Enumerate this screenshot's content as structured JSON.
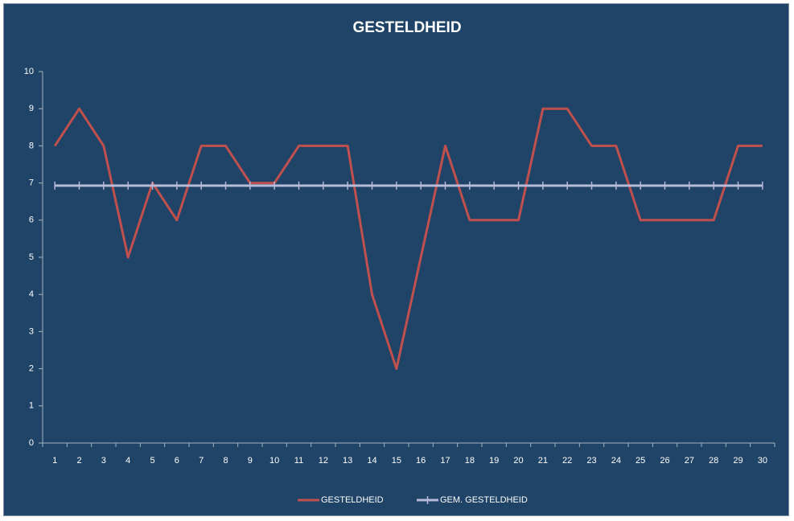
{
  "chart_data": {
    "type": "line",
    "title": "GESTELDHEID",
    "categories": [
      1,
      2,
      3,
      4,
      5,
      6,
      7,
      8,
      9,
      10,
      11,
      12,
      13,
      14,
      15,
      16,
      17,
      18,
      19,
      20,
      21,
      22,
      23,
      24,
      25,
      26,
      27,
      28,
      29,
      30
    ],
    "series": [
      {
        "name": "GESTELDHEID",
        "color": "#c0504d",
        "marker": false,
        "values": [
          8,
          9,
          8,
          5,
          7,
          6,
          8,
          8,
          7,
          7,
          8,
          8,
          8,
          4,
          2,
          5,
          8,
          6,
          6,
          6,
          9,
          9,
          8,
          8,
          6,
          6,
          6,
          6,
          8,
          8
        ]
      },
      {
        "name": "GEM. GESTELDHEID",
        "color": "#b7b9d9",
        "marker": true,
        "values": [
          6.93,
          6.93,
          6.93,
          6.93,
          6.93,
          6.93,
          6.93,
          6.93,
          6.93,
          6.93,
          6.93,
          6.93,
          6.93,
          6.93,
          6.93,
          6.93,
          6.93,
          6.93,
          6.93,
          6.93,
          6.93,
          6.93,
          6.93,
          6.93,
          6.93,
          6.93,
          6.93,
          6.93,
          6.93,
          6.93
        ]
      }
    ],
    "ylim": [
      0,
      10
    ],
    "yticks": [
      0,
      1,
      2,
      3,
      4,
      5,
      6,
      7,
      8,
      9,
      10
    ],
    "grid": false,
    "legend": "bottom"
  }
}
